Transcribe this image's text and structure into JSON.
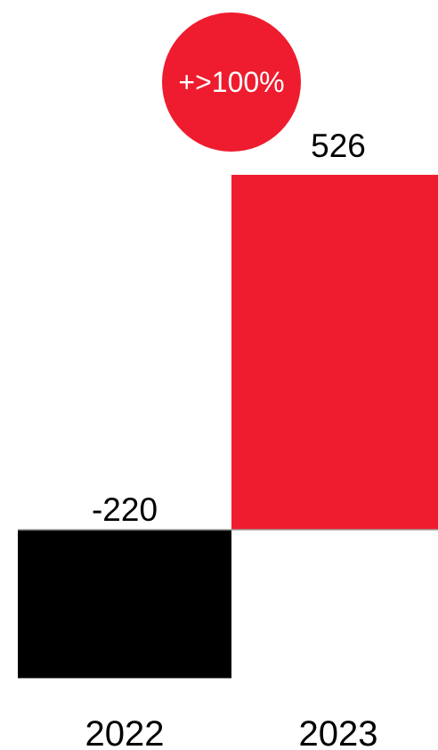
{
  "chart_data": {
    "type": "bar",
    "categories": [
      "2022",
      "2023"
    ],
    "values": [
      -220,
      526
    ],
    "data_labels": [
      "-220",
      "526"
    ],
    "bar_colors": [
      "#000000",
      "#ee1c2e"
    ],
    "badge": {
      "text": "+>100%",
      "color": "#ee1c2e",
      "text_color": "#ffffff"
    },
    "baseline_color": "#9e9e9e",
    "grid": false,
    "legend": "none"
  }
}
